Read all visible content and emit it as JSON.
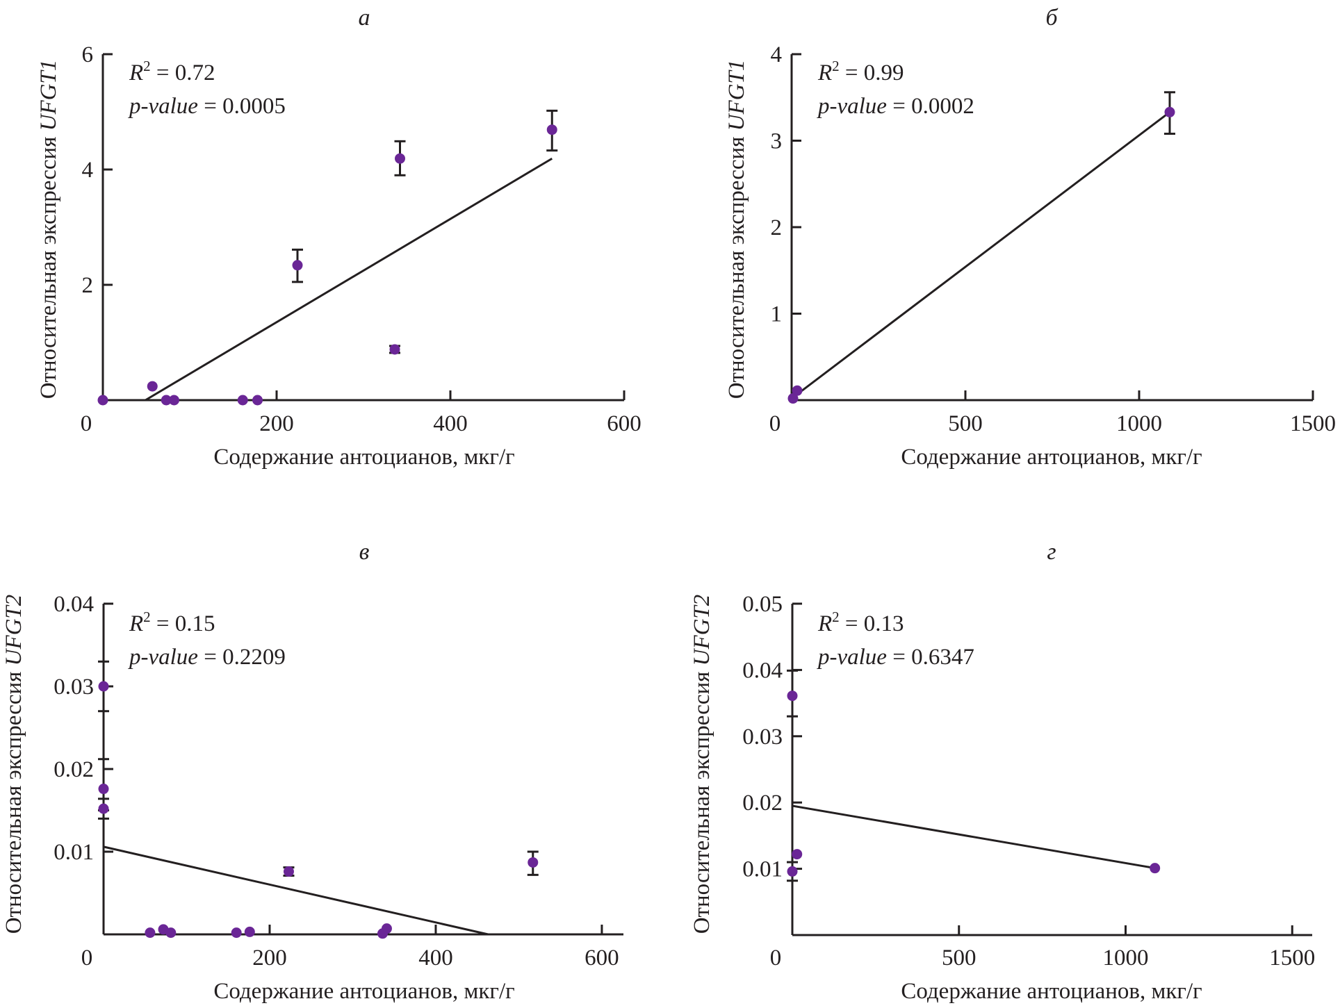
{
  "figure": {
    "point_color": "#6a2696",
    "line_color": "#231f20"
  },
  "chart_data": [
    {
      "id": "a",
      "type": "scatter",
      "panel_label": "а",
      "title": "а",
      "xlabel": "Содержание антоцианов, мкг/г",
      "ylabel_main": "Относительная экспрессия ",
      "ylabel_gene": "UFGT1",
      "xlim": [
        0,
        600
      ],
      "ylim": [
        0,
        6
      ],
      "xticks": [
        0,
        200,
        400,
        600
      ],
      "xtick_labels": [
        "0",
        "200",
        "400",
        "600"
      ],
      "yticks": [
        2,
        4,
        6
      ],
      "ytick_labels": [
        "2",
        "4",
        "6"
      ],
      "grid": false,
      "stats": {
        "r2_label": "R",
        "r2_sup": "2",
        "r2_value": " = 0.72",
        "p_label": "p-value",
        "p_value": " = 0.0005"
      },
      "points": [
        {
          "x": 0,
          "y": 0
        },
        {
          "x": 57,
          "y": 0.24
        },
        {
          "x": 73,
          "y": 0
        },
        {
          "x": 82,
          "y": 0
        },
        {
          "x": 161,
          "y": 0
        },
        {
          "x": 178,
          "y": 0
        },
        {
          "x": 224,
          "y": 2.34,
          "err_low": 2.05,
          "err_high": 2.61
        },
        {
          "x": 336,
          "y": 0.88,
          "err_low": 0.82,
          "err_high": 0.94
        },
        {
          "x": 342,
          "y": 4.19,
          "err_low": 3.9,
          "err_high": 4.49
        },
        {
          "x": 517,
          "y": 4.69,
          "err_low": 4.33,
          "err_high": 5.02
        }
      ],
      "regression": {
        "x": [
          49,
          517
        ],
        "y": [
          0,
          4.19
        ]
      }
    },
    {
      "id": "b",
      "type": "scatter",
      "panel_label": "б",
      "title": "б",
      "xlabel": "Содержание антоцианов, мкг/г",
      "ylabel_main": "Относительная экспрессия ",
      "ylabel_gene": "UFGT1",
      "xlim": [
        0,
        1500
      ],
      "ylim": [
        0,
        4
      ],
      "xticks": [
        0,
        500,
        1000,
        1500
      ],
      "xtick_labels": [
        "0",
        "500",
        "1000",
        "1500"
      ],
      "yticks": [
        1,
        2,
        3,
        4
      ],
      "ytick_labels": [
        "1",
        "2",
        "3",
        "4"
      ],
      "grid": false,
      "stats": {
        "r2_label": "R",
        "r2_sup": "2",
        "r2_value": " = 0.99",
        "p_label": "p-value",
        "p_value": " = 0.0002"
      },
      "points": [
        {
          "x": 4,
          "y": 0.02
        },
        {
          "x": 16,
          "y": 0.11
        },
        {
          "x": 1088,
          "y": 3.33,
          "err_low": 3.08,
          "err_high": 3.56
        }
      ],
      "regression": {
        "x": [
          10,
          1088
        ],
        "y": [
          0.05,
          3.33
        ]
      }
    },
    {
      "id": "v",
      "type": "scatter",
      "panel_label": "в",
      "title": "в",
      "xlabel": "Содержание антоцианов, мкг/г",
      "ylabel_main": "Относительная экспрессия ",
      "ylabel_gene": "UFGT2",
      "xlim": [
        0,
        626
      ],
      "ylim": [
        0,
        0.04
      ],
      "xticks": [
        0,
        200,
        400,
        600
      ],
      "xtick_labels": [
        "0",
        "200",
        "400",
        "600"
      ],
      "yticks": [
        0.01,
        0.02,
        0.03,
        0.04
      ],
      "ytick_labels": [
        "0.01",
        "0.02",
        "0.03",
        "0.04"
      ],
      "grid": false,
      "stats": {
        "r2_label": "R",
        "r2_sup": "2",
        "r2_value": " = 0.15",
        "p_label": "p-value",
        "p_value": " = 0.2209"
      },
      "points": [
        {
          "x": 0,
          "y": 0.03,
          "err_low": 0.027,
          "err_high": 0.033
        },
        {
          "x": 0,
          "y": 0.0176,
          "err_low": 0.015,
          "err_high": 0.0212
        },
        {
          "x": 0,
          "y": 0.0152,
          "err_low": 0.014,
          "err_high": 0.0164
        },
        {
          "x": 56,
          "y": 0.0002
        },
        {
          "x": 72,
          "y": 0.0006
        },
        {
          "x": 81,
          "y": 0.0002
        },
        {
          "x": 160,
          "y": 0.0002
        },
        {
          "x": 176,
          "y": 0.0003
        },
        {
          "x": 223,
          "y": 0.0076,
          "err_low": 0.0071,
          "err_high": 0.0081
        },
        {
          "x": 336,
          "y": 0.0001
        },
        {
          "x": 341,
          "y": 0.0007
        },
        {
          "x": 517,
          "y": 0.0087,
          "err_low": 0.0072,
          "err_high": 0.01
        }
      ],
      "regression": {
        "x": [
          0,
          463
        ],
        "y": [
          0.0106,
          0
        ]
      }
    },
    {
      "id": "g",
      "type": "scatter",
      "panel_label": "г",
      "title": "г",
      "xlabel": "Содержание антоцианов, мкг/г",
      "ylabel_main": "Относительная экспрессия ",
      "ylabel_gene": "UFGT2",
      "xlim": [
        0,
        1560
      ],
      "ylim": [
        0,
        0.05
      ],
      "xticks": [
        0,
        500,
        1000,
        1500
      ],
      "xtick_labels": [
        "0",
        "500",
        "1000",
        "1500"
      ],
      "yticks": [
        0.01,
        0.02,
        0.03,
        0.04,
        0.05
      ],
      "ytick_labels": [
        "0.01",
        "0.02",
        "0.03",
        "0.04",
        "0.05"
      ],
      "grid": false,
      "stats": {
        "r2_label": "R",
        "r2_sup": "2",
        "r2_value": " = 0.13",
        "p_label": "p-value",
        "p_value": " = 0.6347"
      },
      "points": [
        {
          "x": 0,
          "y": 0.0361,
          "err_low": 0.033,
          "err_high": 0.0399
        },
        {
          "x": 14,
          "y": 0.0122
        },
        {
          "x": 0,
          "y": 0.0096,
          "err_low": 0.0082,
          "err_high": 0.011
        },
        {
          "x": 1088,
          "y": 0.0101
        }
      ],
      "regression": {
        "x": [
          0,
          1088
        ],
        "y": [
          0.0195,
          0.0101
        ]
      }
    }
  ]
}
